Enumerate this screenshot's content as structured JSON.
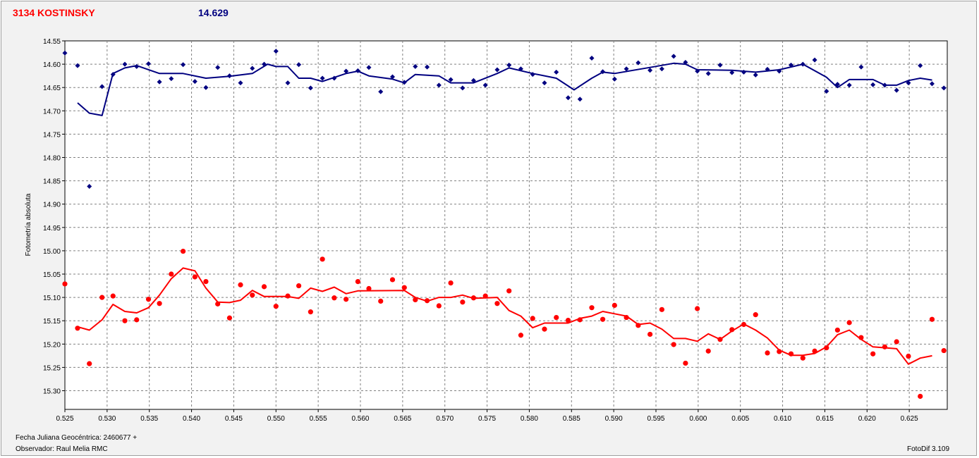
{
  "header": {
    "title": "3134 KOSTINSKY",
    "magnitude": "14.629"
  },
  "footer": {
    "jd_label": "Fecha Juliana Geocéntrica: 2460677 +",
    "observer": "Observador: Raul Melia RMC",
    "software": "FotoDif 3.109"
  },
  "chart_data": {
    "type": "scatter",
    "ylabel": "Fotometría absoluta",
    "xlim": [
      0.525,
      0.6295
    ],
    "ylim": [
      14.55,
      15.34
    ],
    "y_inverted": true,
    "grid": true,
    "x_ticks": [
      0.525,
      0.53,
      0.535,
      0.54,
      0.545,
      0.55,
      0.555,
      0.56,
      0.565,
      0.57,
      0.575,
      0.58,
      0.585,
      0.59,
      0.595,
      0.6,
      0.605,
      0.61,
      0.615,
      0.62,
      0.625
    ],
    "y_ticks": [
      14.55,
      14.6,
      14.65,
      14.7,
      14.75,
      14.8,
      14.85,
      14.9,
      14.95,
      15.0,
      15.05,
      15.1,
      15.15,
      15.2,
      15.25,
      15.3
    ],
    "series": [
      {
        "color": "#000080",
        "marker": "diamond",
        "points": [
          [
            0.525,
            14.576
          ],
          [
            0.5265,
            14.603
          ],
          [
            0.5279,
            14.862
          ],
          [
            0.5294,
            14.648
          ],
          [
            0.5307,
            14.622
          ],
          [
            0.5321,
            14.6
          ],
          [
            0.5335,
            14.605
          ],
          [
            0.5349,
            14.599
          ],
          [
            0.5362,
            14.638
          ],
          [
            0.5376,
            14.631
          ],
          [
            0.539,
            14.601
          ],
          [
            0.5404,
            14.637
          ],
          [
            0.5417,
            14.65
          ],
          [
            0.5431,
            14.607
          ],
          [
            0.5445,
            14.625
          ],
          [
            0.5458,
            14.64
          ],
          [
            0.5472,
            14.609
          ],
          [
            0.5486,
            14.6
          ],
          [
            0.55,
            14.572
          ],
          [
            0.5514,
            14.64
          ],
          [
            0.5527,
            14.601
          ],
          [
            0.5541,
            14.651
          ],
          [
            0.5555,
            14.63
          ],
          [
            0.5569,
            14.63
          ],
          [
            0.5583,
            14.615
          ],
          [
            0.5597,
            14.614
          ],
          [
            0.561,
            14.607
          ],
          [
            0.5624,
            14.659
          ],
          [
            0.5638,
            14.627
          ],
          [
            0.5652,
            14.639
          ],
          [
            0.5665,
            14.605
          ],
          [
            0.5679,
            14.606
          ],
          [
            0.5693,
            14.645
          ],
          [
            0.5707,
            14.633
          ],
          [
            0.5721,
            14.651
          ],
          [
            0.5734,
            14.635
          ],
          [
            0.5748,
            14.645
          ],
          [
            0.5762,
            14.612
          ],
          [
            0.5776,
            14.602
          ],
          [
            0.579,
            14.61
          ],
          [
            0.5804,
            14.622
          ],
          [
            0.5818,
            14.64
          ],
          [
            0.5832,
            14.617
          ],
          [
            0.5846,
            14.672
          ],
          [
            0.586,
            14.675
          ],
          [
            0.5874,
            14.587
          ],
          [
            0.5887,
            14.616
          ],
          [
            0.5901,
            14.632
          ],
          [
            0.5915,
            14.61
          ],
          [
            0.5929,
            14.597
          ],
          [
            0.5943,
            14.613
          ],
          [
            0.5957,
            14.61
          ],
          [
            0.5971,
            14.583
          ],
          [
            0.5985,
            14.596
          ],
          [
            0.5999,
            14.615
          ],
          [
            0.6012,
            14.62
          ],
          [
            0.6026,
            14.602
          ],
          [
            0.604,
            14.618
          ],
          [
            0.6054,
            14.617
          ],
          [
            0.6068,
            14.623
          ],
          [
            0.6082,
            14.611
          ],
          [
            0.6096,
            14.615
          ],
          [
            0.611,
            14.602
          ],
          [
            0.6124,
            14.6
          ],
          [
            0.6138,
            14.591
          ],
          [
            0.6152,
            14.658
          ],
          [
            0.6165,
            14.643
          ],
          [
            0.6179,
            14.645
          ],
          [
            0.6193,
            14.606
          ],
          [
            0.6207,
            14.644
          ],
          [
            0.6221,
            14.645
          ],
          [
            0.6235,
            14.656
          ],
          [
            0.6249,
            14.64
          ],
          [
            0.6263,
            14.603
          ],
          [
            0.6277,
            14.642
          ],
          [
            0.6291,
            14.651
          ]
        ],
        "trend": [
          [
            0.5265,
            14.683
          ],
          [
            0.5279,
            14.705
          ],
          [
            0.5294,
            14.71
          ],
          [
            0.5307,
            14.62
          ],
          [
            0.5321,
            14.608
          ],
          [
            0.5335,
            14.603
          ],
          [
            0.5362,
            14.62
          ],
          [
            0.539,
            14.62
          ],
          [
            0.5417,
            14.63
          ],
          [
            0.5445,
            14.626
          ],
          [
            0.5472,
            14.62
          ],
          [
            0.549,
            14.6
          ],
          [
            0.55,
            14.605
          ],
          [
            0.5514,
            14.605
          ],
          [
            0.5527,
            14.63
          ],
          [
            0.5541,
            14.63
          ],
          [
            0.5555,
            14.637
          ],
          [
            0.5583,
            14.62
          ],
          [
            0.5597,
            14.615
          ],
          [
            0.561,
            14.625
          ],
          [
            0.5638,
            14.632
          ],
          [
            0.5652,
            14.64
          ],
          [
            0.5665,
            14.622
          ],
          [
            0.5693,
            14.625
          ],
          [
            0.5707,
            14.64
          ],
          [
            0.5734,
            14.64
          ],
          [
            0.5762,
            14.62
          ],
          [
            0.5776,
            14.608
          ],
          [
            0.5804,
            14.62
          ],
          [
            0.5832,
            14.63
          ],
          [
            0.5853,
            14.655
          ],
          [
            0.5874,
            14.63
          ],
          [
            0.5887,
            14.617
          ],
          [
            0.5901,
            14.62
          ],
          [
            0.5943,
            14.607
          ],
          [
            0.5971,
            14.598
          ],
          [
            0.5985,
            14.6
          ],
          [
            0.5999,
            14.612
          ],
          [
            0.604,
            14.613
          ],
          [
            0.6068,
            14.617
          ],
          [
            0.6096,
            14.612
          ],
          [
            0.6124,
            14.6
          ],
          [
            0.6152,
            14.628
          ],
          [
            0.6165,
            14.65
          ],
          [
            0.6179,
            14.633
          ],
          [
            0.6207,
            14.633
          ],
          [
            0.6221,
            14.645
          ],
          [
            0.6235,
            14.645
          ],
          [
            0.6249,
            14.635
          ],
          [
            0.6263,
            14.63
          ],
          [
            0.6277,
            14.634
          ]
        ]
      },
      {
        "color": "#ff0000",
        "marker": "circle",
        "points": [
          [
            0.525,
            15.071
          ],
          [
            0.5265,
            15.166
          ],
          [
            0.5279,
            15.242
          ],
          [
            0.5294,
            15.1
          ],
          [
            0.5307,
            15.097
          ],
          [
            0.5321,
            15.15
          ],
          [
            0.5335,
            15.148
          ],
          [
            0.5349,
            15.104
          ],
          [
            0.5362,
            15.113
          ],
          [
            0.5376,
            15.05
          ],
          [
            0.539,
            15.001
          ],
          [
            0.5404,
            15.056
          ],
          [
            0.5417,
            15.066
          ],
          [
            0.5431,
            15.114
          ],
          [
            0.5445,
            15.144
          ],
          [
            0.5458,
            15.073
          ],
          [
            0.5472,
            15.095
          ],
          [
            0.5486,
            15.077
          ],
          [
            0.55,
            15.119
          ],
          [
            0.5514,
            15.097
          ],
          [
            0.5527,
            15.075
          ],
          [
            0.5541,
            15.131
          ],
          [
            0.5555,
            15.018
          ],
          [
            0.5569,
            15.101
          ],
          [
            0.5583,
            15.104
          ],
          [
            0.5597,
            15.066
          ],
          [
            0.561,
            15.081
          ],
          [
            0.5624,
            15.108
          ],
          [
            0.5638,
            15.062
          ],
          [
            0.5652,
            15.079
          ],
          [
            0.5665,
            15.105
          ],
          [
            0.5679,
            15.107
          ],
          [
            0.5693,
            15.118
          ],
          [
            0.5707,
            15.069
          ],
          [
            0.5721,
            15.11
          ],
          [
            0.5734,
            15.101
          ],
          [
            0.5748,
            15.097
          ],
          [
            0.5762,
            15.113
          ],
          [
            0.5776,
            15.086
          ],
          [
            0.579,
            15.181
          ],
          [
            0.5804,
            15.145
          ],
          [
            0.5818,
            15.168
          ],
          [
            0.5832,
            15.143
          ],
          [
            0.5846,
            15.149
          ],
          [
            0.586,
            15.148
          ],
          [
            0.5874,
            15.122
          ],
          [
            0.5887,
            15.147
          ],
          [
            0.5901,
            15.117
          ],
          [
            0.5915,
            15.143
          ],
          [
            0.5929,
            15.16
          ],
          [
            0.5943,
            15.179
          ],
          [
            0.5957,
            15.126
          ],
          [
            0.5971,
            15.201
          ],
          [
            0.5985,
            15.241
          ],
          [
            0.5999,
            15.124
          ],
          [
            0.6012,
            15.215
          ],
          [
            0.6026,
            15.19
          ],
          [
            0.604,
            15.169
          ],
          [
            0.6054,
            15.158
          ],
          [
            0.6068,
            15.137
          ],
          [
            0.6082,
            15.219
          ],
          [
            0.6096,
            15.216
          ],
          [
            0.611,
            15.221
          ],
          [
            0.6124,
            15.23
          ],
          [
            0.6138,
            15.215
          ],
          [
            0.6152,
            15.208
          ],
          [
            0.6165,
            15.17
          ],
          [
            0.6179,
            15.154
          ],
          [
            0.6193,
            15.186
          ],
          [
            0.6207,
            15.221
          ],
          [
            0.6221,
            15.206
          ],
          [
            0.6235,
            15.195
          ],
          [
            0.6249,
            15.226
          ],
          [
            0.6263,
            15.312
          ],
          [
            0.6277,
            15.147
          ],
          [
            0.6291,
            15.214
          ]
        ],
        "trend": [
          [
            0.5265,
            15.163
          ],
          [
            0.5279,
            15.17
          ],
          [
            0.5294,
            15.148
          ],
          [
            0.5307,
            15.115
          ],
          [
            0.5321,
            15.13
          ],
          [
            0.5335,
            15.133
          ],
          [
            0.5349,
            15.122
          ],
          [
            0.5362,
            15.095
          ],
          [
            0.5376,
            15.06
          ],
          [
            0.539,
            15.037
          ],
          [
            0.5404,
            15.043
          ],
          [
            0.5417,
            15.08
          ],
          [
            0.5431,
            15.11
          ],
          [
            0.5445,
            15.111
          ],
          [
            0.5458,
            15.106
          ],
          [
            0.5472,
            15.085
          ],
          [
            0.5486,
            15.098
          ],
          [
            0.5514,
            15.098
          ],
          [
            0.5527,
            15.102
          ],
          [
            0.5541,
            15.08
          ],
          [
            0.5555,
            15.087
          ],
          [
            0.5569,
            15.078
          ],
          [
            0.5583,
            15.092
          ],
          [
            0.5597,
            15.086
          ],
          [
            0.5652,
            15.085
          ],
          [
            0.5665,
            15.1
          ],
          [
            0.5679,
            15.108
          ],
          [
            0.5693,
            15.1
          ],
          [
            0.5707,
            15.1
          ],
          [
            0.5721,
            15.095
          ],
          [
            0.5734,
            15.102
          ],
          [
            0.5762,
            15.1
          ],
          [
            0.5776,
            15.128
          ],
          [
            0.579,
            15.14
          ],
          [
            0.5804,
            15.165
          ],
          [
            0.5818,
            15.155
          ],
          [
            0.5846,
            15.155
          ],
          [
            0.586,
            15.145
          ],
          [
            0.5874,
            15.14
          ],
          [
            0.5887,
            15.13
          ],
          [
            0.5901,
            15.135
          ],
          [
            0.5915,
            15.14
          ],
          [
            0.5929,
            15.158
          ],
          [
            0.5943,
            15.155
          ],
          [
            0.5957,
            15.168
          ],
          [
            0.5971,
            15.188
          ],
          [
            0.5985,
            15.188
          ],
          [
            0.5999,
            15.194
          ],
          [
            0.6012,
            15.178
          ],
          [
            0.6026,
            15.19
          ],
          [
            0.604,
            15.172
          ],
          [
            0.6054,
            15.157
          ],
          [
            0.6068,
            15.17
          ],
          [
            0.6082,
            15.187
          ],
          [
            0.6096,
            15.213
          ],
          [
            0.611,
            15.224
          ],
          [
            0.6124,
            15.224
          ],
          [
            0.6138,
            15.22
          ],
          [
            0.6152,
            15.206
          ],
          [
            0.6165,
            15.18
          ],
          [
            0.6179,
            15.17
          ],
          [
            0.6193,
            15.19
          ],
          [
            0.6207,
            15.206
          ],
          [
            0.6235,
            15.21
          ],
          [
            0.6249,
            15.243
          ],
          [
            0.6263,
            15.23
          ],
          [
            0.6277,
            15.225
          ]
        ]
      }
    ]
  }
}
